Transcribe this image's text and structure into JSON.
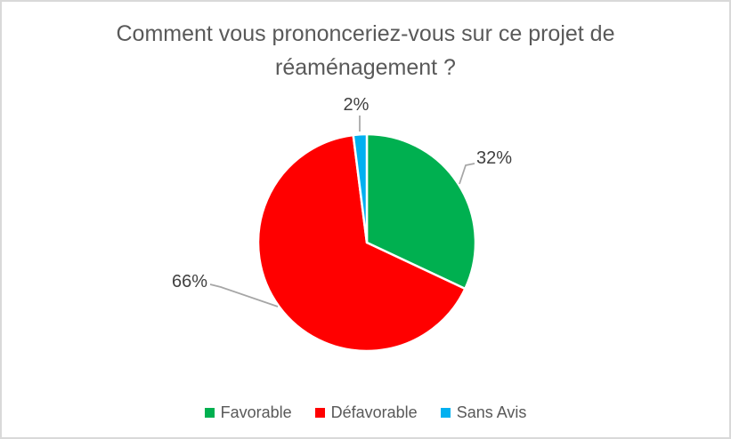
{
  "title": {
    "text": "Comment vous prononceriez-vous sur ce projet de\nréaménagement ?",
    "color": "#595959"
  },
  "chart_data": {
    "type": "pie",
    "title": "Comment vous prononceriez-vous sur ce projet de réaménagement ?",
    "categories": [
      "Favorable",
      "Défavorable",
      "Sans Avis"
    ],
    "values": [
      32,
      66,
      2
    ],
    "unit": "%",
    "slices": [
      {
        "label": "Favorable",
        "value": 32,
        "pct_label": "32%",
        "color": "#00B050"
      },
      {
        "label": "Défavorable",
        "value": 66,
        "pct_label": "66%",
        "color": "#FF0000"
      },
      {
        "label": "Sans Avis",
        "value": 2,
        "pct_label": "2%",
        "color": "#00B0F0"
      }
    ],
    "start_angle_deg": 0,
    "direction": "clockwise",
    "slice_border_color": "#FFFFFF",
    "data_labels": "outside_end_with_leader_lines",
    "label_color": "#404040",
    "leader_line_color": "#A6A6A6",
    "legend_position": "bottom",
    "legend_text_color": "#595959",
    "frame_border_color": "#D9D9D9"
  }
}
